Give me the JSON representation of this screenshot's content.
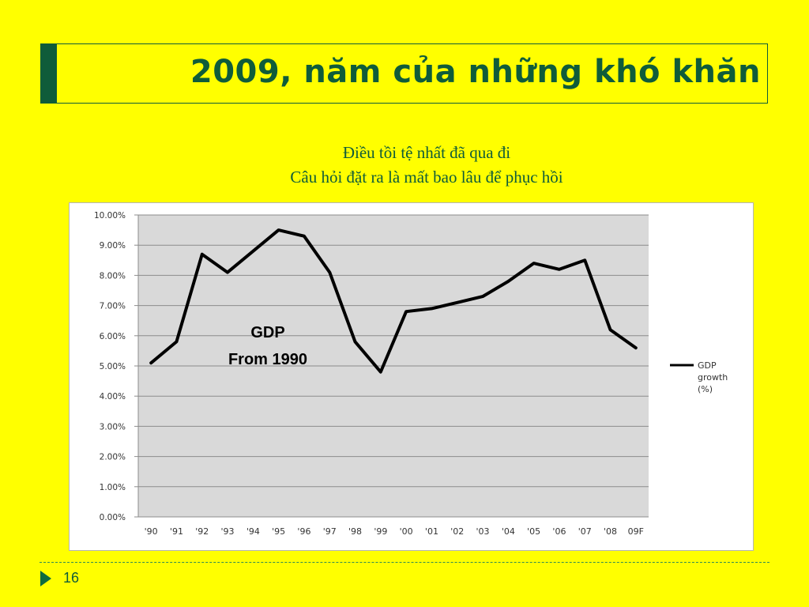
{
  "slide": {
    "title": "2009, năm của những khó khăn",
    "subtitle_line1": "Điều tồi tệ nhất đã qua đi",
    "subtitle_line2": "Câu hỏi đặt ra là mất bao lâu để phục hồi",
    "page_number": "16"
  },
  "chart_data": {
    "type": "line",
    "categories": [
      "'90",
      "'91",
      "'92",
      "'93",
      "'94",
      "'95",
      "'96",
      "'97",
      "'98",
      "'99",
      "'00",
      "'01",
      "'02",
      "'03",
      "'04",
      "'05",
      "'06",
      "'07",
      "'08",
      "09F"
    ],
    "series": [
      {
        "name": "GDP growth (%)",
        "values": [
          5.1,
          5.8,
          8.7,
          8.1,
          8.8,
          9.5,
          9.3,
          8.1,
          5.8,
          4.8,
          6.8,
          6.9,
          7.1,
          7.3,
          7.8,
          8.4,
          8.2,
          8.5,
          6.2,
          5.6
        ],
        "color": "#000000"
      }
    ],
    "y_ticks": [
      "0.00%",
      "1.00%",
      "2.00%",
      "3.00%",
      "4.00%",
      "5.00%",
      "6.00%",
      "7.00%",
      "8.00%",
      "9.00%",
      "10.00%"
    ],
    "ylim": [
      0,
      10
    ],
    "annotation_line1": "GDP",
    "annotation_line2": "From 1990",
    "legend": [
      "GDP",
      "growth",
      "(%)"
    ],
    "legend_position": "right",
    "grid": true,
    "plot_background": "#d9d9d9"
  },
  "colors": {
    "background": "#ffff00",
    "accent": "#0f5c3a"
  }
}
